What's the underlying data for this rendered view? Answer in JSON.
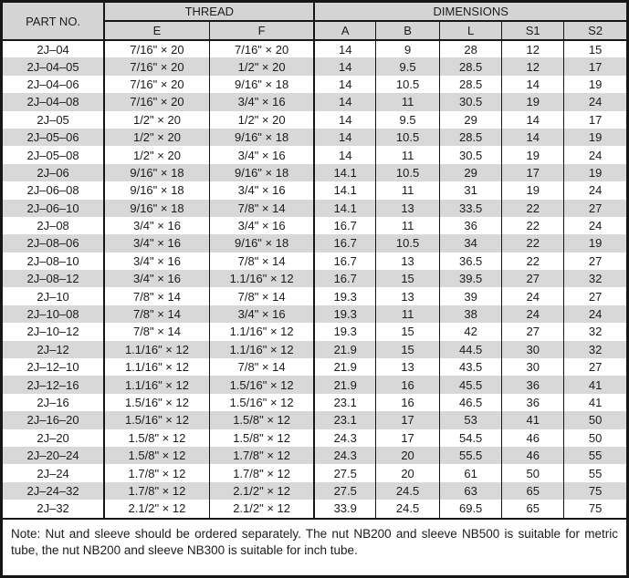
{
  "colors": {
    "header_bg": "#d4d4d4",
    "stripe_bg": "#d8d8d8",
    "line": "#161616",
    "text": "#1b1b1b"
  },
  "table": {
    "header": {
      "part_no": "PART NO.",
      "thread": "THREAD",
      "dimensions": "DIMENSIONS"
    },
    "sub_headers": [
      "E",
      "F",
      "A",
      "B",
      "L",
      "S1",
      "S2"
    ],
    "rows": [
      [
        "2J–04",
        "7/16\" × 20",
        "7/16\" × 20",
        "14",
        "9",
        "28",
        "12",
        "15"
      ],
      [
        "2J–04–05",
        "7/16\" × 20",
        "1/2\" × 20",
        "14",
        "9.5",
        "28.5",
        "12",
        "17"
      ],
      [
        "2J–04–06",
        "7/16\" × 20",
        "9/16\" × 18",
        "14",
        "10.5",
        "28.5",
        "14",
        "19"
      ],
      [
        "2J–04–08",
        "7/16\" × 20",
        "3/4\" × 16",
        "14",
        "11",
        "30.5",
        "19",
        "24"
      ],
      [
        "2J–05",
        "1/2\" × 20",
        "1/2\" × 20",
        "14",
        "9.5",
        "29",
        "14",
        "17"
      ],
      [
        "2J–05–06",
        "1/2\" × 20",
        "9/16\" × 18",
        "14",
        "10.5",
        "28.5",
        "14",
        "19"
      ],
      [
        "2J–05–08",
        "1/2\" × 20",
        "3/4\" × 16",
        "14",
        "11",
        "30.5",
        "19",
        "24"
      ],
      [
        "2J–06",
        "9/16\" × 18",
        "9/16\" × 18",
        "14.1",
        "10.5",
        "29",
        "17",
        "19"
      ],
      [
        "2J–06–08",
        "9/16\" × 18",
        "3/4\" × 16",
        "14.1",
        "11",
        "31",
        "19",
        "24"
      ],
      [
        "2J–06–10",
        "9/16\" × 18",
        "7/8\" × 14",
        "14.1",
        "13",
        "33.5",
        "22",
        "27"
      ],
      [
        "2J–08",
        "3/4\" × 16",
        "3/4\" × 16",
        "16.7",
        "11",
        "36",
        "22",
        "24"
      ],
      [
        "2J–08–06",
        "3/4\" × 16",
        "9/16\" × 18",
        "16.7",
        "10.5",
        "34",
        "22",
        "19"
      ],
      [
        "2J–08–10",
        "3/4\" × 16",
        "7/8\" × 14",
        "16.7",
        "13",
        "36.5",
        "22",
        "27"
      ],
      [
        "2J–08–12",
        "3/4\" × 16",
        "1.1/16\" × 12",
        "16.7",
        "15",
        "39.5",
        "27",
        "32"
      ],
      [
        "2J–10",
        "7/8\" × 14",
        "7/8\" × 14",
        "19.3",
        "13",
        "39",
        "24",
        "27"
      ],
      [
        "2J–10–08",
        "7/8\" × 14",
        "3/4\" × 16",
        "19.3",
        "11",
        "38",
        "24",
        "24"
      ],
      [
        "2J–10–12",
        "7/8\" × 14",
        "1.1/16\" × 12",
        "19.3",
        "15",
        "42",
        "27",
        "32"
      ],
      [
        "2J–12",
        "1.1/16\" × 12",
        "1.1/16\" × 12",
        "21.9",
        "15",
        "44.5",
        "30",
        "32"
      ],
      [
        "2J–12–10",
        "1.1/16\" × 12",
        "7/8\" × 14",
        "21.9",
        "13",
        "43.5",
        "30",
        "27"
      ],
      [
        "2J–12–16",
        "1.1/16\" × 12",
        "1.5/16\" × 12",
        "21.9",
        "16",
        "45.5",
        "36",
        "41"
      ],
      [
        "2J–16",
        "1.5/16\" × 12",
        "1.5/16\" × 12",
        "23.1",
        "16",
        "46.5",
        "36",
        "41"
      ],
      [
        "2J–16–20",
        "1.5/16\" × 12",
        "1.5/8\" × 12",
        "23.1",
        "17",
        "53",
        "41",
        "50"
      ],
      [
        "2J–20",
        "1.5/8\" × 12",
        "1.5/8\" × 12",
        "24.3",
        "17",
        "54.5",
        "46",
        "50"
      ],
      [
        "2J–20–24",
        "1.5/8\" × 12",
        "1.7/8\" × 12",
        "24.3",
        "20",
        "55.5",
        "46",
        "55"
      ],
      [
        "2J–24",
        "1.7/8\" × 12",
        "1.7/8\" × 12",
        "27.5",
        "20",
        "61",
        "50",
        "55"
      ],
      [
        "2J–24–32",
        "1.7/8\" × 12",
        "2.1/2\" × 12",
        "27.5",
        "24.5",
        "63",
        "65",
        "75"
      ],
      [
        "2J–32",
        "2.1/2\" × 12",
        "2.1/2\" × 12",
        "33.9",
        "24.5",
        "69.5",
        "65",
        "75"
      ]
    ]
  },
  "note": {
    "text": "Note: Nut and sleeve should be ordered separately. The nut NB200 and sleeve NB500 is suitable for metric tube, the nut NB200 and sleeve NB300 is suitable for inch tube."
  }
}
